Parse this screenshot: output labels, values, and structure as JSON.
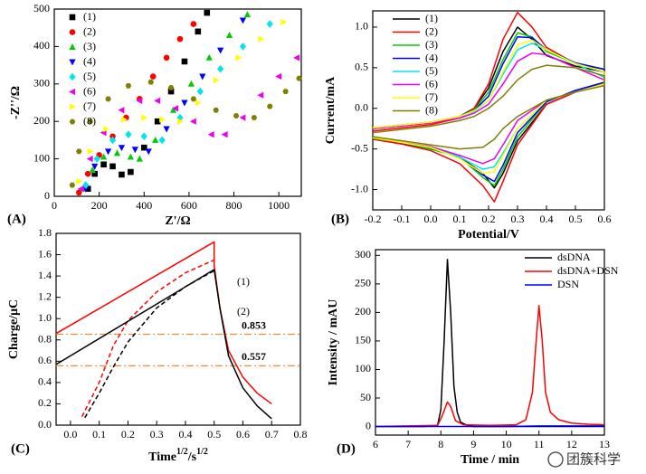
{
  "chart_data": [
    {
      "type": "scatter",
      "panel_label": "(A)",
      "xlabel": "Z'/Ω",
      "ylabel": "-Z''/Ω",
      "xlim": [
        0,
        1100
      ],
      "xticks": [
        0,
        200,
        400,
        600,
        800,
        1000
      ],
      "ylim": [
        0,
        500
      ],
      "yticks": [
        0,
        100,
        200,
        300,
        400,
        500
      ],
      "legend": "upper left",
      "series": [
        {
          "name": "(1)",
          "color": "#000000",
          "marker": "square",
          "x": [
            150,
            180,
            220,
            260,
            300,
            340,
            400,
            460,
            520,
            580,
            640,
            680
          ],
          "values": [
            20,
            60,
            85,
            80,
            58,
            65,
            130,
            200,
            280,
            360,
            440,
            490
          ]
        },
        {
          "name": "(2)",
          "color": "#ff0000",
          "marker": "circle",
          "x": [
            110,
            150,
            200,
            260,
            320,
            380,
            440,
            500,
            560,
            620
          ],
          "values": [
            10,
            60,
            110,
            160,
            210,
            260,
            320,
            370,
            420,
            460
          ]
        },
        {
          "name": "(3)",
          "color": "#00cc00",
          "marker": "triangle-up",
          "x": [
            130,
            170,
            220,
            280,
            340,
            380,
            450,
            530,
            610,
            690,
            780,
            860
          ],
          "values": [
            20,
            70,
            105,
            115,
            105,
            100,
            150,
            230,
            300,
            370,
            430,
            485
          ]
        },
        {
          "name": "(4)",
          "color": "#0000ff",
          "marker": "triangle-down",
          "x": [
            140,
            180,
            240,
            300,
            360,
            420,
            500,
            580,
            660,
            740,
            840
          ],
          "values": [
            20,
            80,
            120,
            130,
            125,
            120,
            180,
            250,
            320,
            390,
            470
          ]
        },
        {
          "name": "(5)",
          "color": "#00e5ee",
          "marker": "diamond",
          "x": [
            140,
            190,
            260,
            330,
            400,
            480,
            560,
            650,
            740,
            840,
            960
          ],
          "values": [
            30,
            100,
            150,
            165,
            160,
            150,
            210,
            280,
            340,
            400,
            460
          ]
        },
        {
          "name": "(6)",
          "color": "#ee00ee",
          "marker": "triangle-left",
          "x": [
            120,
            160,
            220,
            300,
            380,
            460,
            540,
            620,
            700,
            760,
            840,
            920,
            1000,
            1080
          ],
          "values": [
            20,
            100,
            170,
            230,
            255,
            255,
            235,
            200,
            165,
            165,
            210,
            270,
            320,
            370
          ]
        },
        {
          "name": "(7)",
          "color": "#ffff00",
          "marker": "triangle-right",
          "x": [
            110,
            160,
            230,
            310,
            400,
            480,
            560,
            640,
            720,
            820,
            920,
            1020
          ],
          "values": [
            40,
            120,
            180,
            205,
            210,
            205,
            200,
            250,
            310,
            370,
            420,
            465
          ]
        },
        {
          "name": "(8)",
          "color": "#808000",
          "marker": "hexagon",
          "x": [
            80,
            110,
            160,
            240,
            330,
            430,
            520,
            620,
            720,
            810,
            890,
            960,
            1030,
            1090
          ],
          "values": [
            30,
            120,
            200,
            260,
            295,
            305,
            290,
            260,
            230,
            215,
            210,
            240,
            280,
            315
          ]
        }
      ]
    },
    {
      "type": "line",
      "panel_label": "(B)",
      "xlabel": "Potential/V",
      "ylabel": "Current/mA",
      "xlim": [
        -0.2,
        0.6
      ],
      "xticks": [
        -0.2,
        -0.1,
        {
          "value": 0,
          "label": "0.0"
        },
        0.1,
        0.2,
        0.3,
        0.4,
        0.5,
        0.6
      ],
      "ylim": [
        -1.25,
        1.2
      ],
      "yticks": [
        {
          "value": -1,
          "label": "-1.0"
        },
        -0.5,
        {
          "value": 0,
          "label": "0.0"
        },
        0.5,
        {
          "value": 1,
          "label": "1.0"
        }
      ],
      "legend": "upper left",
      "x": [
        -0.2,
        0,
        0.1,
        0.15,
        0.2,
        0.25,
        0.3,
        0.35,
        0.4,
        0.5,
        0.6,
        0.6,
        0.5,
        0.4,
        0.3,
        0.25,
        0.22,
        0.18,
        0.1,
        0,
        -0.1,
        -0.2
      ],
      "series": [
        {
          "name": "(1)",
          "color": "#000000",
          "values": [
            -0.25,
            -0.18,
            -0.1,
            0,
            0.25,
            0.7,
            1.0,
            0.85,
            0.65,
            0.52,
            0.45,
            0.3,
            0.2,
            0.05,
            -0.4,
            -0.8,
            -0.98,
            -0.8,
            -0.6,
            -0.5,
            -0.43,
            -0.38
          ]
        },
        {
          "name": "(2)",
          "color": "#ff0000",
          "values": [
            -0.28,
            -0.2,
            -0.12,
            0,
            0.3,
            0.85,
            1.18,
            1.0,
            0.75,
            0.55,
            0.48,
            0.32,
            0.2,
            0.05,
            -0.45,
            -0.9,
            -1.15,
            -0.95,
            -0.68,
            -0.52,
            -0.44,
            -0.38
          ]
        },
        {
          "name": "(3)",
          "color": "#00cc00",
          "values": [
            -0.25,
            -0.18,
            -0.1,
            -0.02,
            0.2,
            0.6,
            0.93,
            0.88,
            0.7,
            0.55,
            0.48,
            0.32,
            0.22,
            0.08,
            -0.35,
            -0.75,
            -0.95,
            -0.85,
            -0.6,
            -0.5,
            -0.42,
            -0.37
          ]
        },
        {
          "name": "(4)",
          "color": "#0000ff",
          "values": [
            -0.24,
            -0.17,
            -0.1,
            -0.03,
            0.15,
            0.55,
            0.88,
            0.87,
            0.72,
            0.56,
            0.48,
            0.32,
            0.22,
            0.08,
            -0.3,
            -0.7,
            -0.9,
            -0.82,
            -0.6,
            -0.48,
            -0.42,
            -0.36
          ]
        },
        {
          "name": "(5)",
          "color": "#00e5ee",
          "values": [
            -0.24,
            -0.17,
            -0.1,
            -0.04,
            0.1,
            0.42,
            0.72,
            0.8,
            0.72,
            0.55,
            0.38,
            0.3,
            0.2,
            0.1,
            -0.25,
            -0.55,
            -0.72,
            -0.75,
            -0.6,
            -0.48,
            -0.42,
            -0.36
          ]
        },
        {
          "name": "(6)",
          "color": "#ee00ee",
          "values": [
            -0.25,
            -0.18,
            -0.12,
            -0.06,
            0.05,
            0.3,
            0.58,
            0.68,
            0.66,
            0.5,
            0.35,
            0.3,
            0.2,
            0.1,
            -0.15,
            -0.45,
            -0.62,
            -0.68,
            -0.58,
            -0.47,
            -0.42,
            -0.36
          ]
        },
        {
          "name": "(7)",
          "color": "#ffff00",
          "values": [
            -0.24,
            -0.17,
            -0.1,
            -0.03,
            0.1,
            0.45,
            0.78,
            0.84,
            0.72,
            0.55,
            0.45,
            0.3,
            0.2,
            0.1,
            -0.25,
            -0.58,
            -0.78,
            -0.8,
            -0.62,
            -0.48,
            -0.42,
            -0.36
          ]
        },
        {
          "name": "(8)",
          "color": "#808000",
          "values": [
            -0.3,
            -0.22,
            -0.15,
            -0.1,
            0,
            0.15,
            0.35,
            0.48,
            0.53,
            0.5,
            0.4,
            0.28,
            0.2,
            0.1,
            -0.1,
            -0.25,
            -0.38,
            -0.48,
            -0.5,
            -0.45,
            -0.4,
            -0.35
          ]
        }
      ]
    },
    {
      "type": "line",
      "panel_label": "(C)",
      "xlabel": [
        "Time",
        "1/2",
        "/s",
        "1/2"
      ],
      "ylabel": "Charge/μC",
      "xlim": [
        -0.05,
        0.8
      ],
      "xticks": [
        {
          "value": 0,
          "label": "0.0"
        },
        0.1,
        0.2,
        0.3,
        0.4,
        0.5,
        0.6,
        0.7,
        0.8
      ],
      "ylim": [
        0,
        1.8
      ],
      "yticks": [
        {
          "value": 0,
          "label": "0.0"
        },
        0.2,
        0.4,
        0.6,
        0.8,
        {
          "value": 1,
          "label": "1.0"
        },
        1.2,
        1.4,
        1.6,
        1.8
      ],
      "hlines": [
        0.853,
        0.557
      ],
      "hline_color": "#e8903a",
      "series": [
        {
          "name": "(1)",
          "color": "#ff0000",
          "dash": false,
          "x": [
            -0.05,
            0.5,
            0.5,
            0.52,
            0.55,
            0.6,
            0.65,
            0.7
          ],
          "values": [
            0.86,
            1.72,
            1.5,
            1.1,
            0.7,
            0.45,
            0.3,
            0.2
          ]
        },
        {
          "color": "#ff0000",
          "dash": true,
          "x": [
            0.04,
            0.1,
            0.15,
            0.2,
            0.3,
            0.4,
            0.5
          ],
          "values": [
            0.08,
            0.4,
            0.75,
            0.98,
            1.25,
            1.43,
            1.55
          ]
        },
        {
          "name": "(2)",
          "color": "#000000",
          "dash": false,
          "x": [
            -0.05,
            0.5,
            0.52,
            0.55,
            0.6,
            0.65,
            0.7
          ],
          "values": [
            0.57,
            1.46,
            1.1,
            0.65,
            0.35,
            0.18,
            0.06
          ]
        },
        {
          "color": "#000000",
          "dash": true,
          "x": [
            0.05,
            0.1,
            0.15,
            0.2,
            0.3,
            0.4,
            0.5
          ],
          "values": [
            0.07,
            0.3,
            0.55,
            0.78,
            1.1,
            1.3,
            1.45
          ]
        }
      ]
    },
    {
      "type": "line",
      "panel_label": "(D)",
      "xlabel": "Time / min",
      "ylabel": "Intensity / mAU",
      "xlim": [
        6,
        13
      ],
      "xticks": [
        6,
        7,
        8,
        9,
        10,
        11,
        12,
        13
      ],
      "ylim": [
        -15,
        310
      ],
      "yticks": [
        0,
        50,
        100,
        150,
        200,
        250,
        300
      ],
      "legend": "upper right",
      "series": [
        {
          "name": "dsDNA",
          "color": "#000000",
          "x": [
            6,
            7.5,
            7.9,
            8,
            8.1,
            8.2,
            8.3,
            8.4,
            8.5,
            8.6,
            8.8,
            9,
            13
          ],
          "values": [
            0,
            0,
            2,
            30,
            150,
            293,
            200,
            70,
            25,
            8,
            2,
            0,
            0
          ]
        },
        {
          "name": "dsDNA+DSN",
          "color": "#ff0000",
          "x": [
            6,
            7.9,
            8.05,
            8.2,
            8.3,
            8.45,
            8.7,
            9.5,
            10.3,
            10.6,
            10.8,
            10.9,
            11,
            11.1,
            11.2,
            11.35,
            11.6,
            12,
            12.5,
            13
          ],
          "values": [
            0,
            2,
            20,
            43,
            35,
            10,
            3,
            2,
            3,
            12,
            60,
            140,
            212,
            150,
            60,
            25,
            12,
            6,
            4,
            3
          ]
        },
        {
          "name": "DSN",
          "color": "#0000ff",
          "x": [
            6,
            8,
            10,
            11,
            12,
            13
          ],
          "values": [
            0,
            0,
            0,
            1,
            1,
            1
          ]
        }
      ]
    }
  ],
  "watermark": "团簇科学"
}
